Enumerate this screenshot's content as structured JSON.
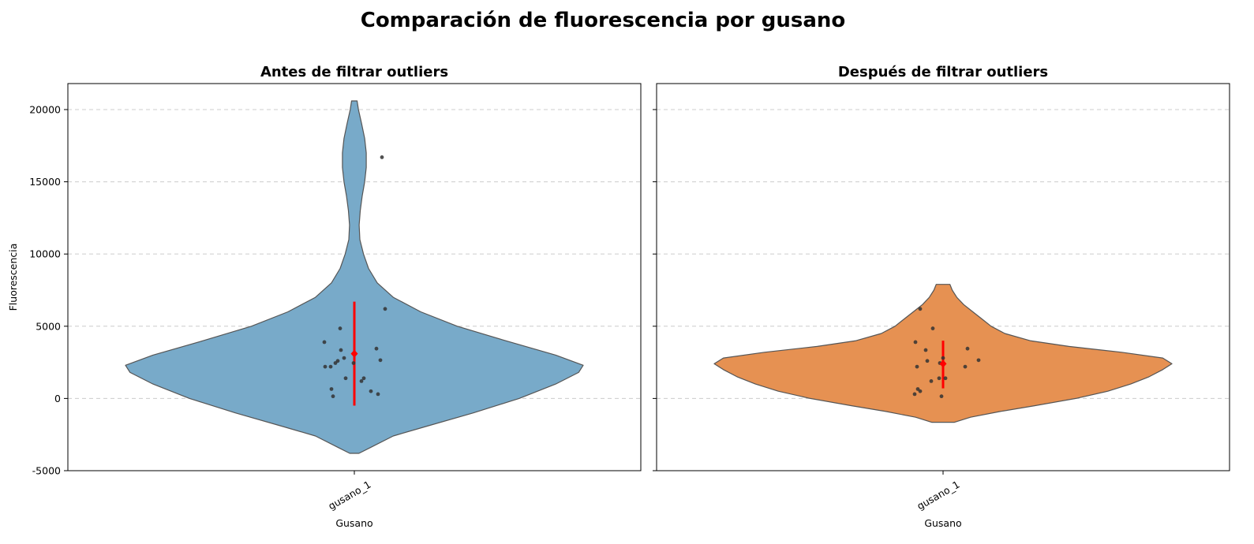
{
  "figure": {
    "title": "Comparación de fluorescencia por gusano"
  },
  "colors": {
    "before": "#78aac9",
    "after": "#e69152",
    "outline": "#555555",
    "mean": "#ff0000",
    "points": "#333333",
    "grid": "#cccccc"
  },
  "chart_data": [
    {
      "type": "violin",
      "title": "Antes de filtrar outliers",
      "xlabel": "Gusano",
      "ylabel": "Fluorescencia",
      "categories": [
        "gusano_1"
      ],
      "ylim": [
        -5000,
        21800
      ],
      "yticks": [
        -5000,
        0,
        5000,
        10000,
        15000,
        20000
      ],
      "grid": true,
      "violin": {
        "y_range": [
          -3800,
          20600
        ],
        "profile": [
          [
            -3800,
            0.02
          ],
          [
            -3400,
            0.07
          ],
          [
            -2600,
            0.17
          ],
          [
            -2000,
            0.3
          ],
          [
            -1000,
            0.52
          ],
          [
            0,
            0.72
          ],
          [
            1000,
            0.88
          ],
          [
            1800,
            0.98
          ],
          [
            2300,
            1.0
          ],
          [
            3000,
            0.88
          ],
          [
            4000,
            0.66
          ],
          [
            5000,
            0.45
          ],
          [
            6000,
            0.29
          ],
          [
            7000,
            0.17
          ],
          [
            8000,
            0.1
          ],
          [
            9000,
            0.062
          ],
          [
            10000,
            0.04
          ],
          [
            11000,
            0.024
          ],
          [
            12000,
            0.021
          ],
          [
            13000,
            0.026
          ],
          [
            14000,
            0.034
          ],
          [
            15000,
            0.045
          ],
          [
            16000,
            0.052
          ],
          [
            17000,
            0.052
          ],
          [
            18000,
            0.045
          ],
          [
            19000,
            0.032
          ],
          [
            20000,
            0.018
          ],
          [
            20600,
            0.012
          ]
        ]
      },
      "points": [
        {
          "jitter": -0.38,
          "value": 3900
        },
        {
          "jitter": -0.37,
          "value": 2200
        },
        {
          "jitter": -0.3,
          "value": 2200
        },
        {
          "jitter": -0.24,
          "value": 2450
        },
        {
          "jitter": -0.21,
          "value": 2600
        },
        {
          "jitter": -0.18,
          "value": 4850
        },
        {
          "jitter": -0.17,
          "value": 3350
        },
        {
          "jitter": -0.13,
          "value": 2800
        },
        {
          "jitter": -0.11,
          "value": 1400
        },
        {
          "jitter": -0.29,
          "value": 650
        },
        {
          "jitter": -0.27,
          "value": 150
        },
        {
          "jitter": -0.01,
          "value": 2450
        },
        {
          "jitter": 0.09,
          "value": 1200
        },
        {
          "jitter": 0.12,
          "value": 1400
        },
        {
          "jitter": 0.21,
          "value": 500
        },
        {
          "jitter": 0.28,
          "value": 3450
        },
        {
          "jitter": 0.3,
          "value": 300
        },
        {
          "jitter": 0.33,
          "value": 2650
        },
        {
          "jitter": 0.35,
          "value": 16700
        },
        {
          "jitter": 0.39,
          "value": 6200
        }
      ],
      "mean": 3100,
      "error_bar": [
        -500,
        6700
      ]
    },
    {
      "type": "violin",
      "title": "Después de filtrar outliers",
      "xlabel": "Gusano",
      "ylabel": "",
      "categories": [
        "gusano_1"
      ],
      "ylim": [
        -5000,
        21800
      ],
      "yticks": [
        -5000,
        0,
        5000,
        10000,
        15000,
        20000
      ],
      "grid": true,
      "violin": {
        "y_range": [
          -1650,
          7900
        ],
        "profile": [
          [
            -1650,
            0.05
          ],
          [
            -1300,
            0.12
          ],
          [
            -900,
            0.25
          ],
          [
            -500,
            0.4
          ],
          [
            0,
            0.58
          ],
          [
            500,
            0.72
          ],
          [
            1000,
            0.82
          ],
          [
            1500,
            0.9
          ],
          [
            2000,
            0.96
          ],
          [
            2400,
            1.0
          ],
          [
            2800,
            0.96
          ],
          [
            3200,
            0.78
          ],
          [
            3600,
            0.55
          ],
          [
            4000,
            0.38
          ],
          [
            4500,
            0.27
          ],
          [
            5000,
            0.21
          ],
          [
            5500,
            0.17
          ],
          [
            6000,
            0.13
          ],
          [
            6500,
            0.09
          ],
          [
            7000,
            0.06
          ],
          [
            7500,
            0.04
          ],
          [
            7900,
            0.03
          ]
        ]
      },
      "points": [
        {
          "jitter": -0.35,
          "value": 3900
        },
        {
          "jitter": -0.33,
          "value": 2200
        },
        {
          "jitter": -0.36,
          "value": 300
        },
        {
          "jitter": -0.32,
          "value": 650
        },
        {
          "jitter": -0.29,
          "value": 500
        },
        {
          "jitter": -0.29,
          "value": 6200
        },
        {
          "jitter": -0.22,
          "value": 3350
        },
        {
          "jitter": -0.2,
          "value": 2600
        },
        {
          "jitter": -0.15,
          "value": 1200
        },
        {
          "jitter": -0.13,
          "value": 4850
        },
        {
          "jitter": -0.05,
          "value": 1400
        },
        {
          "jitter": -0.04,
          "value": 2450
        },
        {
          "jitter": -0.02,
          "value": 150
        },
        {
          "jitter": 0.0,
          "value": 2800
        },
        {
          "jitter": 0.03,
          "value": 1400
        },
        {
          "jitter": 0.28,
          "value": 2200
        },
        {
          "jitter": 0.31,
          "value": 3450
        },
        {
          "jitter": 0.45,
          "value": 2650
        }
      ],
      "mean": 2400,
      "error_bar": [
        700,
        4000
      ]
    }
  ]
}
